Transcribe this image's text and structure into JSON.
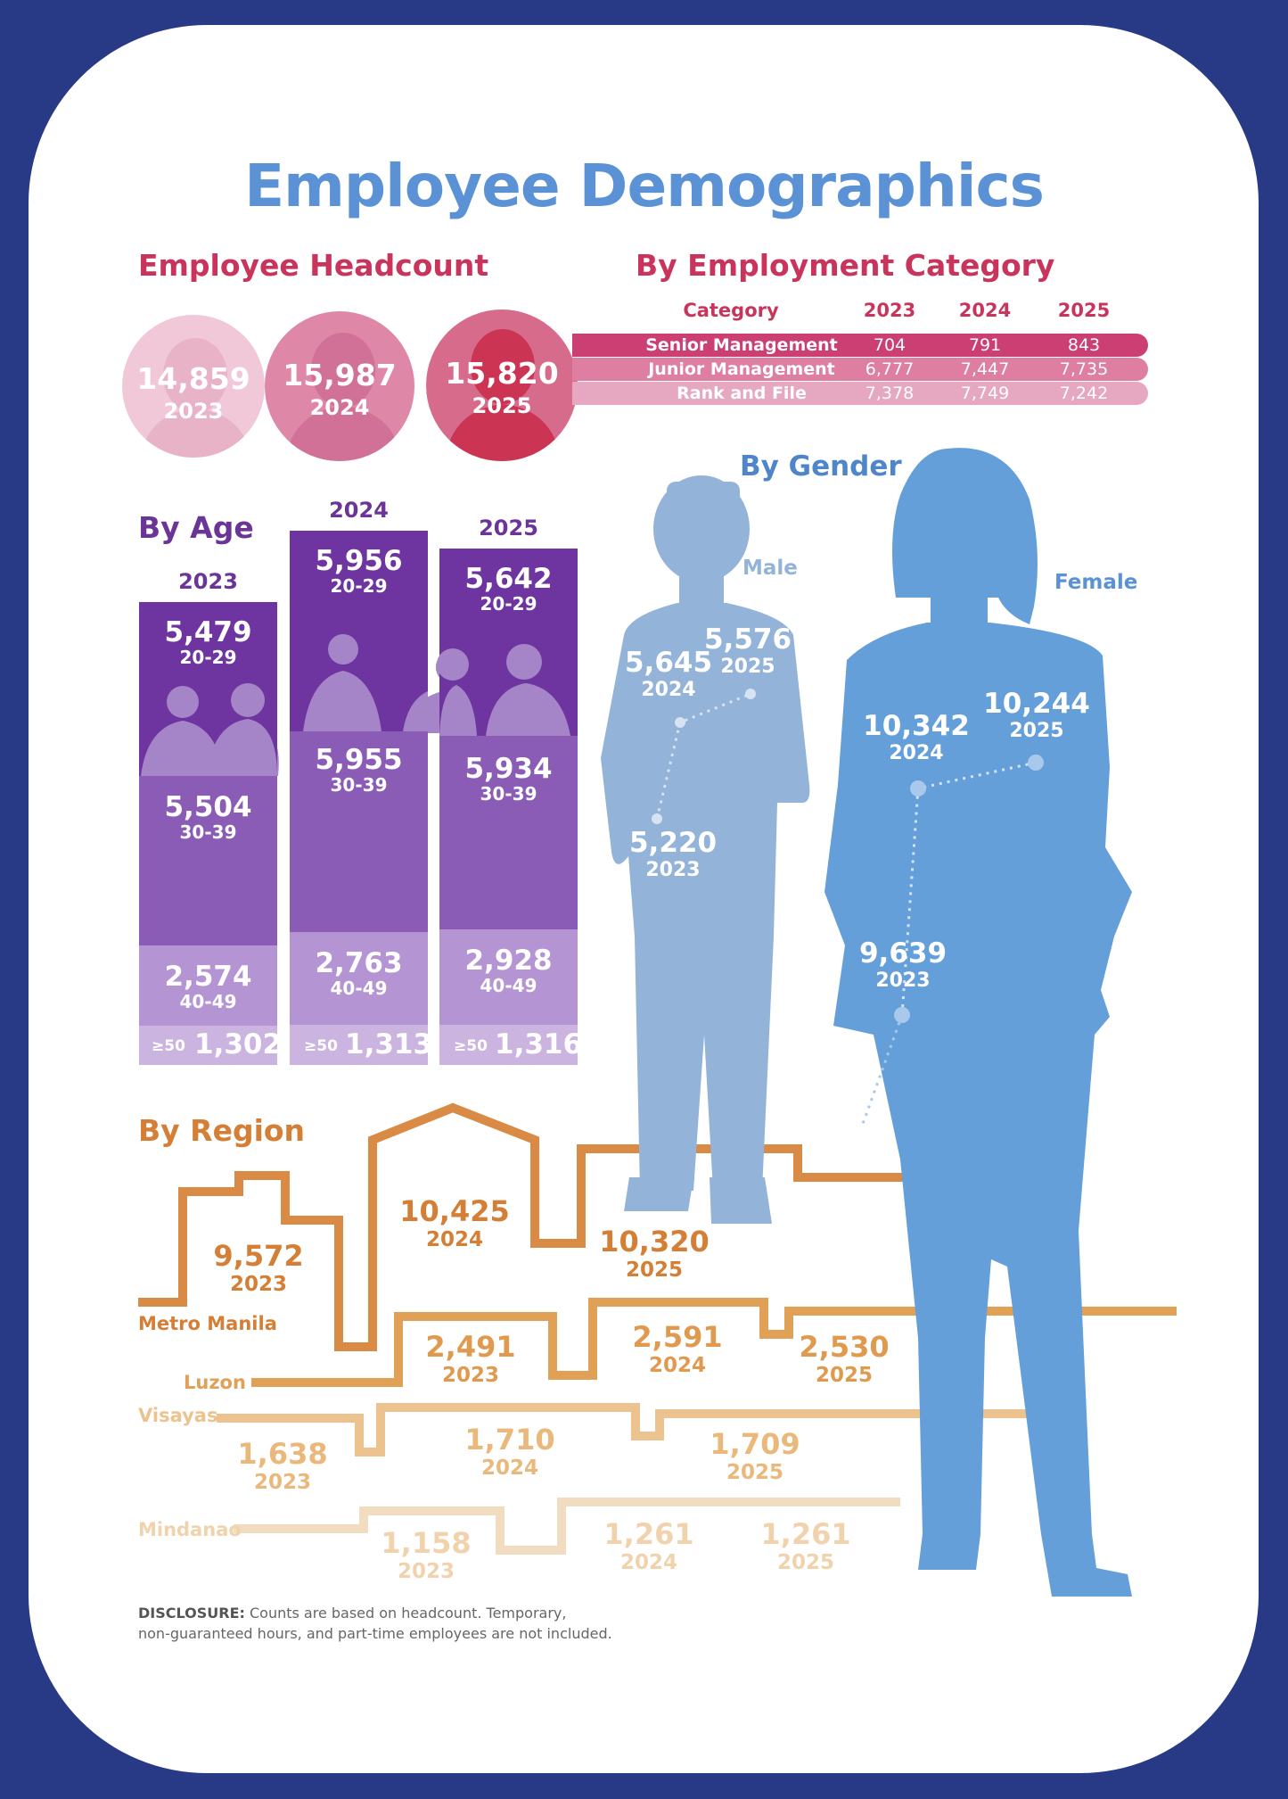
{
  "title": "Employee Demographics",
  "headcount": {
    "title": "Employee Headcount",
    "items": [
      {
        "value": "14,859",
        "year": "2023"
      },
      {
        "value": "15,987",
        "year": "2024"
      },
      {
        "value": "15,820",
        "year": "2025"
      }
    ]
  },
  "category": {
    "title": "By Employment Category",
    "headers": [
      "Category",
      "2023",
      "2024",
      "2025"
    ],
    "rows": [
      {
        "name": "Senior Management",
        "v2023": "704",
        "v2024": "791",
        "v2025": "843"
      },
      {
        "name": "Junior Management",
        "v2023": "6,777",
        "v2024": "7,447",
        "v2025": "7,735"
      },
      {
        "name": "Rank and File",
        "v2023": "7,378",
        "v2024": "7,749",
        "v2025": "7,242"
      }
    ]
  },
  "age": {
    "title": "By Age",
    "ge50_label": "≥50",
    "bars": [
      {
        "year": "2023",
        "g20": "5,479",
        "l20": "20-29",
        "g30": "5,504",
        "l30": "30-39",
        "g40": "2,574",
        "l40": "40-49",
        "g50": "1,302"
      },
      {
        "year": "2024",
        "g20": "5,956",
        "l20": "20-29",
        "g30": "5,955",
        "l30": "30-39",
        "g40": "2,763",
        "l40": "40-49",
        "g50": "1,313"
      },
      {
        "year": "2025",
        "g20": "5,642",
        "l20": "20-29",
        "g30": "5,934",
        "l30": "30-39",
        "g40": "2,928",
        "l40": "40-49",
        "g50": "1,316"
      }
    ]
  },
  "gender": {
    "title": "By Gender",
    "male": {
      "label": "Male",
      "v2023": "5,220",
      "y2023": "2023",
      "v2024": "5,645",
      "y2024": "2024",
      "v2025": "5,576",
      "y2025": "2025"
    },
    "female": {
      "label": "Female",
      "v2023": "9,639",
      "y2023": "2023",
      "v2024": "10,342",
      "y2024": "2024",
      "v2025": "10,244",
      "y2025": "2025"
    }
  },
  "region": {
    "title": "By Region",
    "metro": {
      "label": "Metro Manila",
      "v2023": "9,572",
      "y2023": "2023",
      "v2024": "10,425",
      "y2024": "2024",
      "v2025": "10,320",
      "y2025": "2025"
    },
    "luzon": {
      "label": "Luzon",
      "v2023": "2,491",
      "y2023": "2023",
      "v2024": "2,591",
      "y2024": "2024",
      "v2025": "2,530",
      "y2025": "2025"
    },
    "visayas": {
      "label": "Visayas",
      "v2023": "1,638",
      "y2023": "2023",
      "v2024": "1,710",
      "y2024": "2024",
      "v2025": "1,709",
      "y2025": "2025"
    },
    "mindanao": {
      "label": "Mindanao",
      "v2023": "1,158",
      "y2023": "2023",
      "v2024": "1,261",
      "y2024": "2024",
      "v2025": "1,261",
      "y2025": "2025"
    }
  },
  "disclosure": {
    "label": "DISCLOSURE:",
    "line1": " Counts are based on headcount. Temporary,",
    "line2": "non-guaranteed hours, and part-time employees are not included."
  },
  "colors": {
    "background": "#283a85",
    "title_blue": "#5b92d6",
    "pink": "#c8345c",
    "purple_dark": "#6e35a0",
    "purple_mid": "#8b5cb5",
    "purple_light": "#b494d2",
    "male_blue": "#93b3d9",
    "female_blue": "#649fd9",
    "orange": "#d47f35",
    "orange_light": "#e8b980",
    "orange_pale": "#f0d3ad"
  }
}
